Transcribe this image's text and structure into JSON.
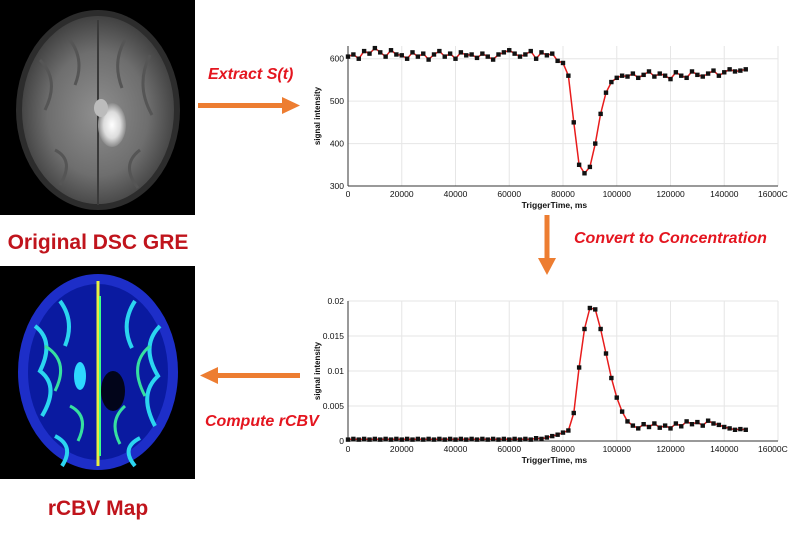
{
  "captions": {
    "original": "Original DSC GRE",
    "rcbv": "rCBV Map"
  },
  "steps": {
    "extract": "Extract S(t)",
    "convert": "Convert to Concentration",
    "compute": "Compute rCBV"
  },
  "colors": {
    "arrow": "#ed7d31",
    "caption": "#c0141c",
    "step": "#e4151f",
    "curve": "#e81c1c",
    "marker": "#111111"
  },
  "icons": {
    "gre_image": "brain-mri-gre-image",
    "rcbv_image": "brain-rcbv-map-image"
  },
  "chart_data": [
    {
      "type": "line",
      "title": "",
      "xlabel": "TriggerTime, ms",
      "ylabel": "signal intensity",
      "xlim": [
        0,
        160000
      ],
      "ylim": [
        300,
        630
      ],
      "xticks": [
        "0",
        "20000",
        "40000",
        "60000",
        "80000",
        "100000",
        "120000",
        "140000",
        "16000C"
      ],
      "yticks": [
        "600",
        "500",
        "400",
        "300"
      ],
      "grid": true,
      "series": [
        {
          "x": [
            0,
            2000,
            4000,
            6000,
            8000,
            10000,
            12000,
            14000,
            16000,
            18000,
            20000,
            22000,
            24000,
            26000,
            28000,
            30000,
            32000,
            34000,
            36000,
            38000,
            40000,
            42000,
            44000,
            46000,
            48000,
            50000,
            52000,
            54000,
            56000,
            58000,
            60000,
            62000,
            64000,
            66000,
            68000,
            70000,
            72000,
            74000,
            76000,
            78000,
            80000,
            82000,
            84000,
            86000,
            88000,
            90000,
            92000,
            94000,
            96000,
            98000,
            100000,
            102000,
            104000,
            106000,
            108000,
            110000,
            112000,
            114000,
            116000,
            118000,
            120000,
            122000,
            124000,
            126000,
            128000,
            130000,
            132000,
            134000,
            136000,
            138000,
            140000,
            142000,
            144000,
            146000,
            148000
          ],
          "values": [
            605,
            610,
            600,
            618,
            612,
            625,
            615,
            605,
            620,
            610,
            608,
            600,
            615,
            605,
            612,
            598,
            610,
            618,
            605,
            612,
            600,
            615,
            608,
            610,
            602,
            612,
            605,
            598,
            610,
            615,
            620,
            612,
            605,
            610,
            618,
            600,
            615,
            608,
            612,
            595,
            590,
            560,
            450,
            350,
            330,
            345,
            400,
            470,
            520,
            545,
            555,
            560,
            558,
            565,
            555,
            562,
            570,
            558,
            565,
            560,
            552,
            568,
            560,
            555,
            570,
            562,
            558,
            565,
            572,
            560,
            568,
            575,
            570,
            572,
            575
          ]
        }
      ]
    },
    {
      "type": "line",
      "title": "",
      "xlabel": "TriggerTime, ms",
      "ylabel": "signal intensity",
      "xlim": [
        0,
        160000
      ],
      "ylim": [
        0,
        0.02
      ],
      "xticks": [
        "0",
        "20000",
        "40000",
        "60000",
        "80000",
        "100000",
        "120000",
        "140000",
        "16000C"
      ],
      "yticks": [
        "0.02",
        "0.015",
        "0.01",
        "0.005",
        "0"
      ],
      "grid": true,
      "series": [
        {
          "x": [
            0,
            2000,
            4000,
            6000,
            8000,
            10000,
            12000,
            14000,
            16000,
            18000,
            20000,
            22000,
            24000,
            26000,
            28000,
            30000,
            32000,
            34000,
            36000,
            38000,
            40000,
            42000,
            44000,
            46000,
            48000,
            50000,
            52000,
            54000,
            56000,
            58000,
            60000,
            62000,
            64000,
            66000,
            68000,
            70000,
            72000,
            74000,
            76000,
            78000,
            80000,
            82000,
            84000,
            86000,
            88000,
            90000,
            92000,
            94000,
            96000,
            98000,
            100000,
            102000,
            104000,
            106000,
            108000,
            110000,
            112000,
            114000,
            116000,
            118000,
            120000,
            122000,
            124000,
            126000,
            128000,
            130000,
            132000,
            134000,
            136000,
            138000,
            140000,
            142000,
            144000,
            146000,
            148000
          ],
          "values": [
            0.0002,
            0.0003,
            0.0002,
            0.0003,
            0.0002,
            0.0003,
            0.0002,
            0.0003,
            0.0002,
            0.0003,
            0.0002,
            0.0003,
            0.0002,
            0.0003,
            0.0002,
            0.0003,
            0.0002,
            0.0003,
            0.0002,
            0.0003,
            0.0002,
            0.0003,
            0.0002,
            0.0003,
            0.0002,
            0.0003,
            0.0002,
            0.0003,
            0.0002,
            0.0003,
            0.0002,
            0.0003,
            0.0002,
            0.0003,
            0.0002,
            0.0004,
            0.0003,
            0.0005,
            0.0007,
            0.0009,
            0.0012,
            0.0015,
            0.004,
            0.0105,
            0.016,
            0.019,
            0.0188,
            0.016,
            0.0125,
            0.009,
            0.0062,
            0.0042,
            0.0028,
            0.0022,
            0.0018,
            0.0024,
            0.002,
            0.0025,
            0.0019,
            0.0022,
            0.0018,
            0.0025,
            0.0021,
            0.0028,
            0.0024,
            0.0027,
            0.0022,
            0.0029,
            0.0025,
            0.0023,
            0.002,
            0.0018,
            0.0016,
            0.0017,
            0.0016
          ]
        }
      ]
    }
  ]
}
